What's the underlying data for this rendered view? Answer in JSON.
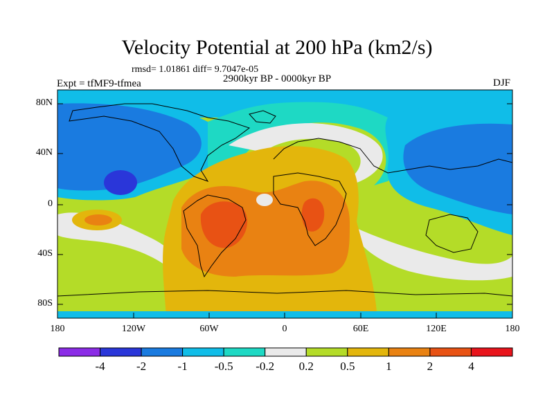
{
  "title": "Velocity Potential at 200 hPa (km2/s)",
  "stats_line": "rmsd= 1.01861  diff= 9.7047e-05",
  "period": "2900kyr BP - 0000kyr BP",
  "experiment": "Expt = tfMF9-tfmea",
  "season": "DJF",
  "lat_ticks": [
    "80N",
    "40N",
    "0",
    "40S",
    "80S"
  ],
  "lon_ticks": [
    "180",
    "120W",
    "60W",
    "0",
    "60E",
    "120E",
    "180"
  ],
  "colorbar": {
    "labels": [
      "-4",
      "-2",
      "-1",
      "-0.5",
      "-0.2",
      "0.2",
      "0.5",
      "1",
      "2",
      "4"
    ],
    "colors": [
      "#8b2ce6",
      "#2a36d9",
      "#1a7be0",
      "#10bde8",
      "#1ed9c4",
      "#eaeaea",
      "#b4dc28",
      "#e3b60c",
      "#e98212",
      "#e85214",
      "#e8141c"
    ]
  }
}
